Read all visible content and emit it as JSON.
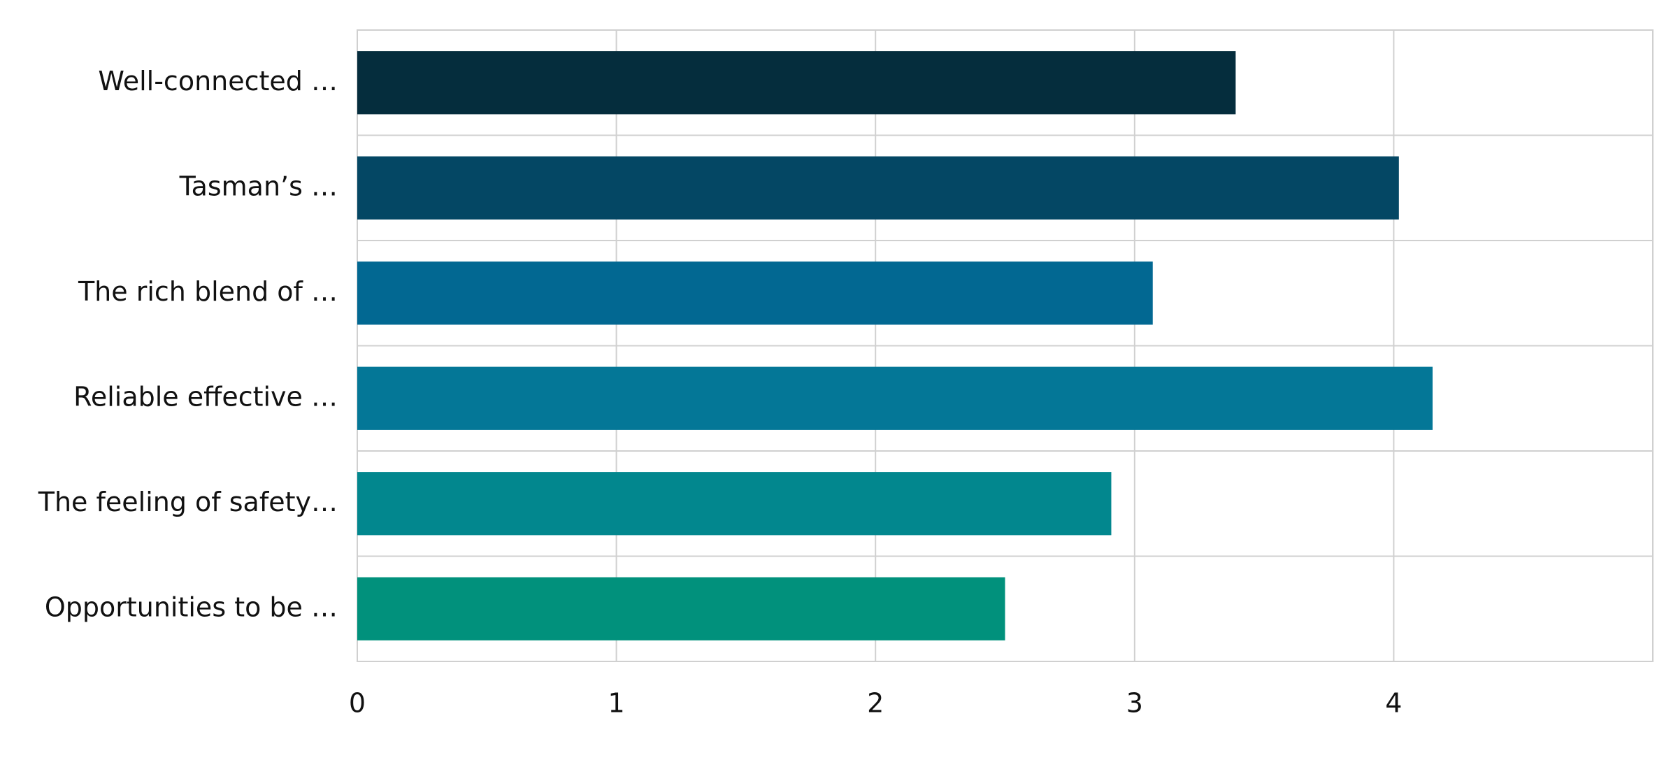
{
  "chart_data": {
    "type": "bar",
    "orientation": "horizontal",
    "categories": [
      "Well-connected …",
      "Tasman’s …",
      "The rich blend of …",
      "Reliable effective …",
      "The feeling of safety…",
      "Opportunities to be …"
    ],
    "series": [
      {
        "values": [
          3.39,
          4.02,
          3.07,
          4.15,
          2.91,
          2.5
        ],
        "colors": [
          "#052d3d",
          "#044764",
          "#026892",
          "#047797",
          "#02878e",
          "#01917c"
        ]
      }
    ],
    "xlim": [
      0,
      5
    ],
    "xticks": [
      0,
      1,
      2,
      3,
      4
    ],
    "grid": true
  }
}
